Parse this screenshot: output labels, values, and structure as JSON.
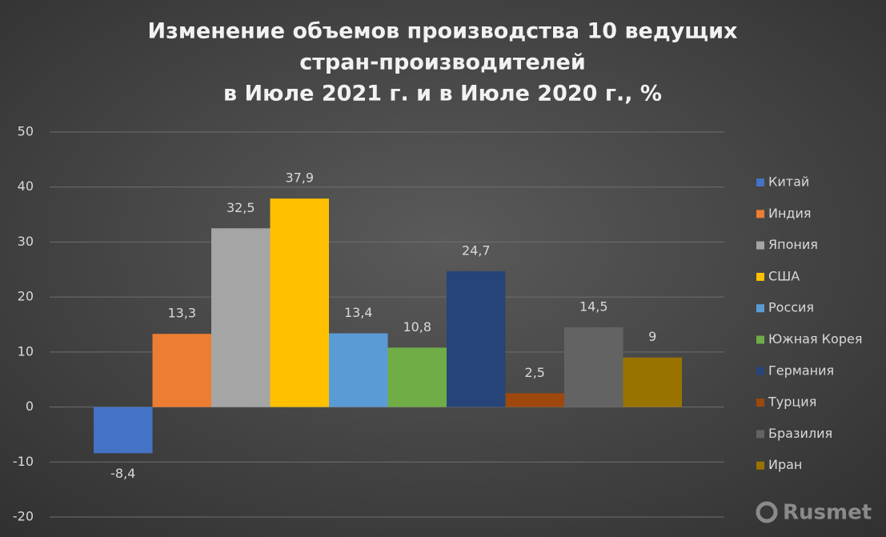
{
  "chart_data": {
    "type": "bar",
    "title": [
      "Изменение объемов производства 10 ведущих",
      "стран-производителей",
      "в Июле 2021 г. и в Июле 2020 г., %"
    ],
    "series": [
      {
        "name": "Китай",
        "color": "#4472c4",
        "values": [
          -8.4
        ],
        "value_labels": [
          "-8,4"
        ]
      },
      {
        "name": "Индия",
        "color": "#ed7d31",
        "values": [
          13.3
        ],
        "value_labels": [
          "13,3"
        ]
      },
      {
        "name": "Япония",
        "color": "#a5a5a5",
        "values": [
          32.5
        ],
        "value_labels": [
          "32,5"
        ]
      },
      {
        "name": "США",
        "color": "#ffc000",
        "values": [
          37.9
        ],
        "value_labels": [
          "37,9"
        ]
      },
      {
        "name": "Россия",
        "color": "#5b9bd5",
        "values": [
          13.4
        ],
        "value_labels": [
          "13,4"
        ]
      },
      {
        "name": "Южная Корея",
        "color": "#70ad47",
        "values": [
          10.8
        ],
        "value_labels": [
          "10,8"
        ]
      },
      {
        "name": "Германия",
        "color": "#264478",
        "values": [
          24.7
        ],
        "value_labels": [
          "24,7"
        ]
      },
      {
        "name": "Турция",
        "color": "#9e480e",
        "values": [
          2.5
        ],
        "value_labels": [
          "2,5"
        ]
      },
      {
        "name": "Бразилия",
        "color": "#636363",
        "values": [
          14.5
        ],
        "value_labels": [
          "14,5"
        ]
      },
      {
        "name": "Иран",
        "color": "#997300",
        "values": [
          9
        ]
      }
    ],
    "ylim": [
      -20,
      50
    ],
    "yticks": [
      -20,
      -10,
      0,
      10,
      20,
      30,
      40,
      50
    ],
    "grid": true,
    "legend": "right",
    "watermark": "Rusmet"
  }
}
